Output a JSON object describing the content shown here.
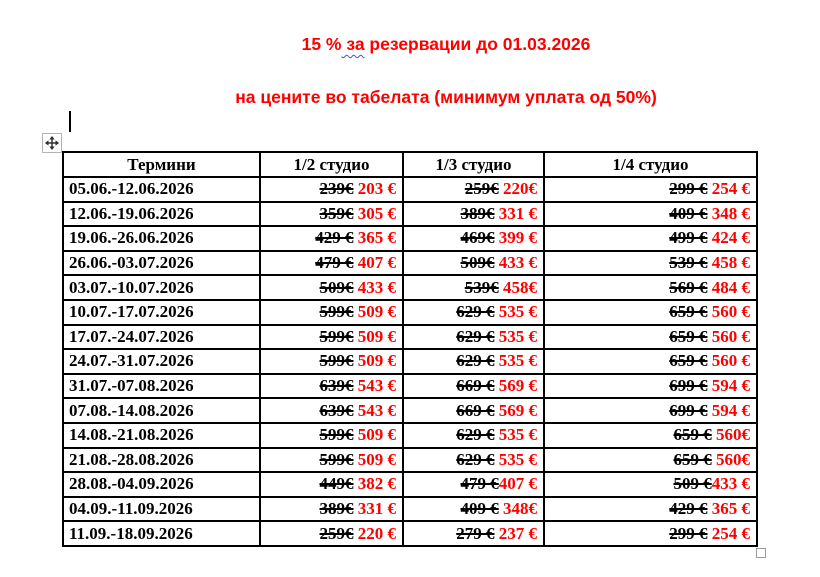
{
  "banner": {
    "line1": {
      "prefix": "15 %",
      "misspelled": " за",
      "suffix": " резервации до 01.03.2026"
    },
    "line2": "на цените во табелата (минимум уплата од 50%)",
    "text_color": "#ff0000",
    "squiggle_color": "#4152d9"
  },
  "artifacts": {
    "move_handle_icon": "table-move-cross-icon",
    "resize_handle_icon": "table-resize-square-icon"
  },
  "table": {
    "columns": [
      "Термини",
      "1/2 студио",
      "1/3 студио",
      "1/4 студио"
    ],
    "old_price_color": "#000000",
    "new_price_color": "#ff0000",
    "rows": [
      {
        "term": "05.06.-12.06.2026",
        "cells": [
          {
            "old": "239€",
            "new": " 203 €"
          },
          {
            "old": "259€",
            "new": " 220€"
          },
          {
            "old": "299 €",
            "new": " 254 €"
          }
        ]
      },
      {
        "term": "12.06.-19.06.2026",
        "cells": [
          {
            "old": "359€",
            "new": " 305 €"
          },
          {
            "old": "389€",
            "new": " 331 €"
          },
          {
            "old": "409 €",
            "new": " 348 €"
          }
        ]
      },
      {
        "term": "19.06.-26.06.2026",
        "cells": [
          {
            "old": "429 €",
            "new": " 365 €"
          },
          {
            "old": "469€",
            "new": " 399 €"
          },
          {
            "old": "499 €",
            "new": " 424 €"
          }
        ]
      },
      {
        "term": "26.06.-03.07.2026",
        "cells": [
          {
            "old": "479 €",
            "new": " 407 €"
          },
          {
            "old": "509€",
            "new": " 433 €"
          },
          {
            "old": "539 €",
            "new": " 458 €"
          }
        ]
      },
      {
        "term": "03.07.-10.07.2026",
        "cells": [
          {
            "old": "509€",
            "new": " 433 €"
          },
          {
            "old": "539€",
            "new": " 458€"
          },
          {
            "old": "569 €",
            "new": " 484 €"
          }
        ]
      },
      {
        "term": "10.07.-17.07.2026",
        "cells": [
          {
            "old": "599€",
            "new": " 509 €"
          },
          {
            "old": "629 €",
            "new": " 535 €"
          },
          {
            "old": "659 €",
            "new": " 560 €"
          }
        ]
      },
      {
        "term": "17.07.-24.07.2026",
        "cells": [
          {
            "old": "599€",
            "new": " 509 €"
          },
          {
            "old": "629 €",
            "new": " 535 €"
          },
          {
            "old": "659 €",
            "new": " 560 €"
          }
        ]
      },
      {
        "term": "24.07.-31.07.2026",
        "cells": [
          {
            "old": "599€",
            "new": " 509 €"
          },
          {
            "old": "629 €",
            "new": " 535 €"
          },
          {
            "old": "659 €",
            "new": " 560 €"
          }
        ]
      },
      {
        "term": "31.07.-07.08.2026",
        "cells": [
          {
            "old": "639€",
            "new": " 543 €"
          },
          {
            "old": "669 €",
            "new": " 569 €"
          },
          {
            "old": "699 €",
            "new": " 594 €"
          }
        ]
      },
      {
        "term": "07.08.-14.08.2026",
        "cells": [
          {
            "old": "639€",
            "new": " 543 €"
          },
          {
            "old": "669 €",
            "new": " 569 €"
          },
          {
            "old": "699 €",
            "new": " 594 €"
          }
        ]
      },
      {
        "term": "14.08.-21.08.2026",
        "cells": [
          {
            "old": "599€",
            "new": " 509 €"
          },
          {
            "old": "629 €",
            "new": " 535 €"
          },
          {
            "old": "659 €",
            "new": " 560€"
          }
        ]
      },
      {
        "term": "21.08.-28.08.2026",
        "cells": [
          {
            "old": "599€",
            "new": " 509 €"
          },
          {
            "old": "629 €",
            "new": " 535 €"
          },
          {
            "old": "659 €",
            "new": " 560€"
          }
        ]
      },
      {
        "term": "28.08.-04.09.2026",
        "cells": [
          {
            "old": "449€",
            "new": " 382 €"
          },
          {
            "old": "479 €",
            "new": "407 €"
          },
          {
            "old": "509 €",
            "new": "433 €"
          }
        ]
      },
      {
        "term": "04.09.-11.09.2026",
        "cells": [
          {
            "old": "389€",
            "new": " 331 €"
          },
          {
            "old": "409 €",
            "new": " 348€"
          },
          {
            "old": "429 €",
            "new": " 365 €"
          }
        ]
      },
      {
        "term": "11.09.-18.09.2026",
        "cells": [
          {
            "old": "259€",
            "new": " 220 €"
          },
          {
            "old": "279 €",
            "new": " 237 €"
          },
          {
            "old": "299 €",
            "new": " 254 €"
          }
        ]
      }
    ]
  }
}
